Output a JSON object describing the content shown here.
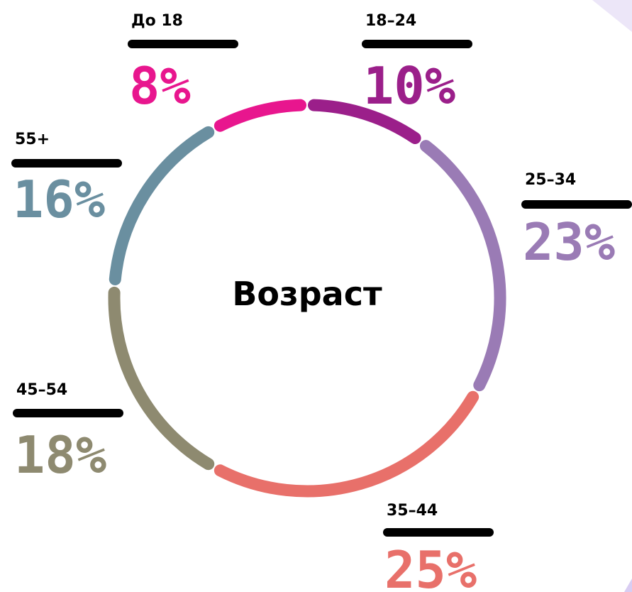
{
  "chart_data": {
    "type": "donut",
    "title": "Возраст",
    "categories": [
      "До 18",
      "18–24",
      "25–34",
      "35–44",
      "45–54",
      "55+"
    ],
    "values": [
      8,
      10,
      23,
      25,
      18,
      16
    ],
    "value_labels": [
      "8%",
      "10%",
      "23%",
      "25%",
      "18%",
      "16%"
    ],
    "colors": [
      "#e8168e",
      "#9b1f8a",
      "#9a7bb5",
      "#e8706a",
      "#8e8a70",
      "#6a8fa0"
    ]
  }
}
